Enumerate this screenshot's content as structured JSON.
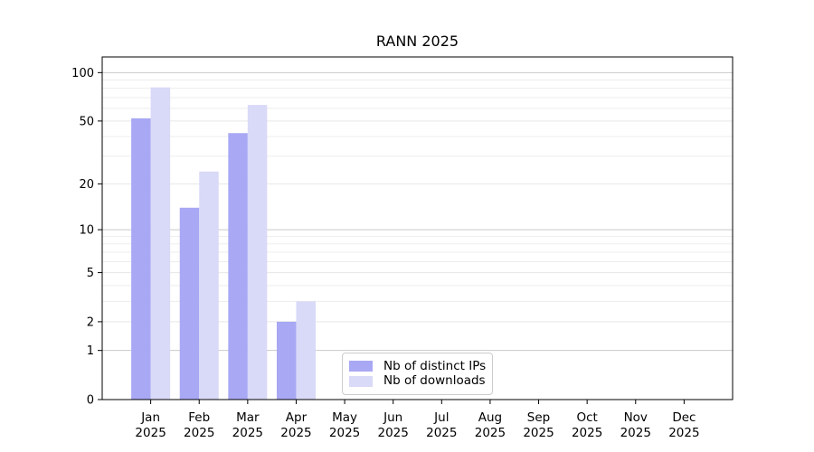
{
  "chart_data": {
    "type": "bar",
    "title": "RANN 2025",
    "year_label": "2025",
    "categories": [
      "Jan",
      "Feb",
      "Mar",
      "Apr",
      "May",
      "Jun",
      "Jul",
      "Aug",
      "Sep",
      "Oct",
      "Nov",
      "Dec"
    ],
    "series": [
      {
        "name": "Nb of distinct IPs",
        "color": "#a8a8f4",
        "values": [
          52,
          14,
          42,
          2,
          0,
          0,
          0,
          0,
          0,
          0,
          0,
          0
        ]
      },
      {
        "name": "Nb of downloads",
        "color": "#d9d9f8",
        "values": [
          81,
          24,
          63,
          3,
          0,
          0,
          0,
          0,
          0,
          0,
          0,
          0
        ]
      }
    ],
    "xlabel": "",
    "ylabel": "",
    "yscale": "log1p",
    "ymax": 125,
    "yticks": [
      0,
      1,
      2,
      5,
      10,
      20,
      50,
      100
    ],
    "yticks_minor": [
      3,
      4,
      6,
      7,
      8,
      9,
      30,
      40,
      60,
      70,
      80,
      90
    ],
    "grid": "on",
    "legend_position": "inside-bottom-center",
    "colors": {
      "grid_decade": "#c9c9c9",
      "grid_major": "#e7e7e7",
      "grid_minor": "#ededed",
      "axis": "#000000"
    }
  }
}
